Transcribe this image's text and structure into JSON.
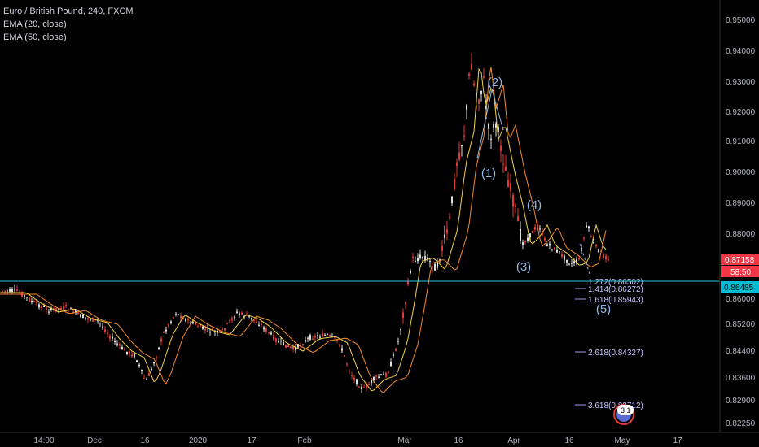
{
  "legend": {
    "symbol": "Euro / British Pound, 240, FXCM",
    "ema20": "EMA (20, close)",
    "ema50": "EMA (50, close)"
  },
  "price_axis": {
    "ticks": [
      "0.95000",
      "0.94000",
      "0.93000",
      "0.92000",
      "0.91000",
      "0.90000",
      "0.89000",
      "0.88000",
      "0.86000",
      "0.85200",
      "0.84400",
      "0.83600",
      "0.82900",
      "0.82250"
    ],
    "last_price": "0.87158",
    "countdown": "58:50",
    "line_price": "0.86485"
  },
  "time_axis": {
    "ticks": [
      "14:00",
      "Dec",
      "16",
      "2020",
      "17",
      "Feb",
      "Mar",
      "16",
      "Apr",
      "16",
      "May",
      "17"
    ]
  },
  "fib_levels": [
    {
      "label": "1.272(0.86502)",
      "value": 0.86502
    },
    {
      "label": "1.414(0.86272)",
      "value": 0.86272
    },
    {
      "label": "1.618(0.85943)",
      "value": 0.85943
    },
    {
      "label": "2.618(0.84327)",
      "value": 0.84327
    },
    {
      "label": "3.618(0.82712)",
      "value": 0.82712
    }
  ],
  "waves": [
    "(1)",
    "(2)",
    "(3)",
    "(4)",
    "(5)"
  ],
  "colors": {
    "bull": "#e0e0e0",
    "bear": "#e53935",
    "ema20": "#f2d24a",
    "ema50": "#f28a30",
    "hline": "#2ec4d6",
    "tag_red": "#f23645",
    "tag_cyan": "#00bcd4",
    "wave": "#8fb8e8"
  }
}
